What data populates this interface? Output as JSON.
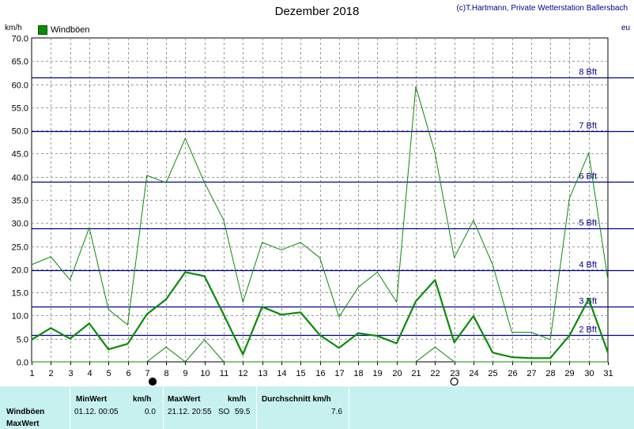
{
  "title": "Dezember 2018",
  "copyright": "(c)T.Hartmann, Private Wetterstation Ballersbach",
  "edge_mark": "eu",
  "colors": {
    "series": "#0a8a0a",
    "beaufort": "#00008b",
    "table_bg": "#c7f1ef"
  },
  "chart_data": {
    "type": "line",
    "title": "Dezember 2018",
    "ylabel": "km/h",
    "ylim": [
      0,
      70
    ],
    "yticks": [
      "0.0",
      "5.0",
      "10.0",
      "15.0",
      "20.0",
      "25.0",
      "30.0",
      "35.0",
      "40.0",
      "45.0",
      "50.0",
      "55.0",
      "60.0",
      "65.0",
      "70.0"
    ],
    "xlim": [
      1,
      31
    ],
    "xticks": [
      "1",
      "2",
      "3",
      "4",
      "5",
      "6",
      "7",
      "8",
      "9",
      "10",
      "11",
      "12",
      "13",
      "14",
      "15",
      "16",
      "17",
      "18",
      "19",
      "20",
      "21",
      "22",
      "23",
      "24",
      "25",
      "26",
      "27",
      "28",
      "29",
      "30",
      "31"
    ],
    "grid": true,
    "legend": {
      "position": "top-left",
      "entries": [
        "Windböen"
      ]
    },
    "series": [
      {
        "name": "Windböen",
        "role": "daily maximum",
        "x": [
          1,
          2,
          3,
          4,
          5,
          6,
          7,
          8,
          9,
          10,
          11,
          12,
          13,
          14,
          15,
          16,
          17,
          18,
          19,
          20,
          21,
          22,
          23,
          24,
          25,
          26,
          27,
          28,
          29,
          30,
          31
        ],
        "values": [
          21.0,
          22.7,
          17.7,
          29.0,
          11.3,
          8.0,
          40.3,
          38.7,
          48.3,
          38.7,
          30.6,
          12.9,
          25.8,
          24.2,
          25.8,
          22.5,
          9.7,
          16.1,
          19.4,
          12.9,
          59.5,
          45.1,
          22.5,
          30.6,
          21.0,
          6.4,
          6.4,
          4.8,
          35.4,
          45.1,
          17.7
        ]
      },
      {
        "name": "Windböen",
        "role": "daily mean",
        "x": [
          1,
          2,
          3,
          4,
          5,
          6,
          7,
          8,
          9,
          10,
          11,
          12,
          13,
          14,
          15,
          16,
          17,
          18,
          19,
          20,
          21,
          22,
          23,
          24,
          25,
          26,
          27,
          28,
          29,
          30,
          31
        ],
        "values": [
          4.8,
          7.3,
          5.0,
          8.3,
          2.7,
          3.9,
          10.3,
          13.5,
          19.4,
          18.5,
          10.2,
          1.6,
          11.9,
          10.2,
          10.7,
          5.8,
          3.0,
          6.2,
          5.6,
          4.0,
          13.1,
          17.7,
          4.2,
          9.9,
          2.0,
          1.0,
          0.8,
          0.8,
          5.7,
          13.6,
          2.0
        ]
      },
      {
        "name": "Windböen",
        "role": "daily minimum",
        "x": [
          1,
          2,
          3,
          4,
          5,
          6,
          7,
          8,
          9,
          10,
          11,
          12,
          13,
          14,
          15,
          16,
          17,
          18,
          19,
          20,
          21,
          22,
          23,
          24,
          25,
          26,
          27,
          28,
          29,
          30,
          31
        ],
        "values": [
          0,
          0,
          0,
          0,
          0,
          0,
          0,
          3.2,
          0,
          4.8,
          0,
          0,
          0,
          0,
          0,
          0,
          0,
          0,
          0,
          0,
          0,
          3.2,
          0,
          0,
          0,
          0,
          0,
          0,
          0,
          0,
          0
        ]
      }
    ],
    "reference_lines": [
      {
        "label": "2 Bft",
        "value": 5.8
      },
      {
        "label": "3 Bft",
        "value": 12.0
      },
      {
        "label": "4 Bft",
        "value": 19.8
      },
      {
        "label": "5 Bft",
        "value": 28.8
      },
      {
        "label": "6 Bft",
        "value": 38.9
      },
      {
        "label": "7 Bft",
        "value": 49.9
      },
      {
        "label": "8 Bft",
        "value": 61.5
      }
    ],
    "moon_phases": [
      {
        "day": 7.3,
        "phase": "new moon"
      },
      {
        "day": 23,
        "phase": "full moon"
      }
    ]
  },
  "table": {
    "row_labels": [
      "Windböen",
      "MaxWert"
    ],
    "headers": {
      "min": "MinWert",
      "min_unit": "km/h",
      "max": "MaxWert",
      "max_unit": "km/h",
      "avg": "Durchschnitt km/h"
    },
    "min_time": "01.12.  00:05",
    "min_value": "0.0",
    "max_time": "21.12.  20:55",
    "max_dir": "SO",
    "max_value": "59.5",
    "avg_value": "7.6"
  }
}
